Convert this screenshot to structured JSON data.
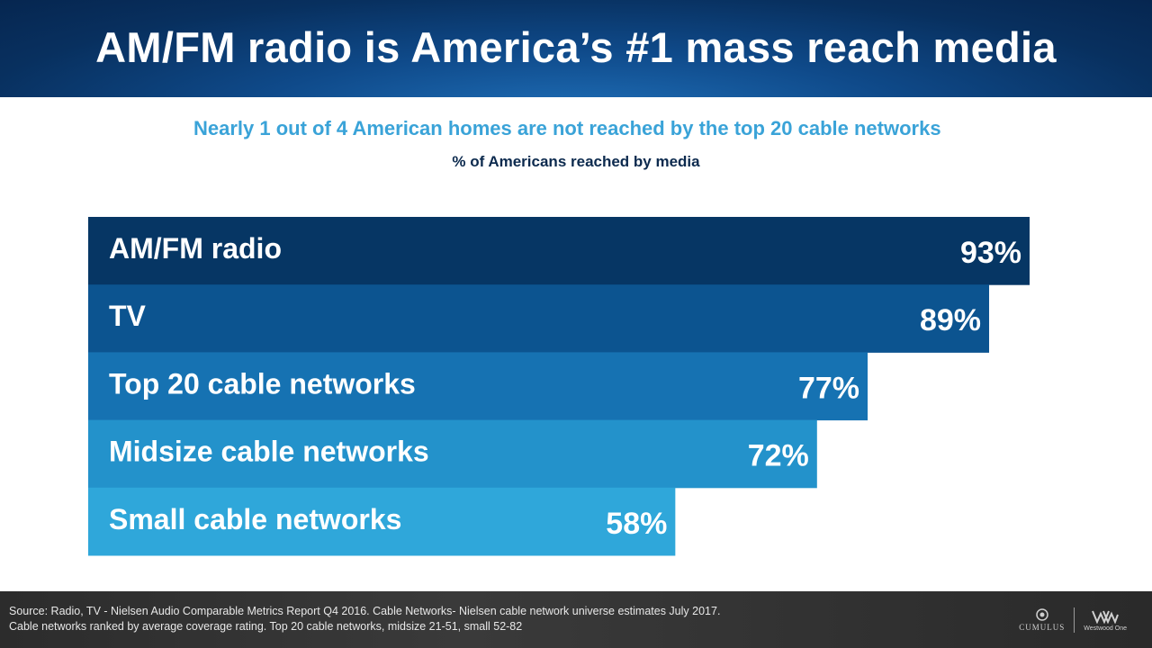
{
  "header": {
    "title": "AM/FM radio is America’s #1 mass reach media"
  },
  "subtitle": "Nearly 1 out of 4 American homes are not reached by the top 20 cable networks",
  "chart_subtitle": "% of Americans reached by media",
  "chart_data": {
    "type": "bar",
    "orientation": "horizontal",
    "title": "% of Americans reached by media",
    "categories": [
      "AM/FM radio",
      "TV",
      "Top 20 cable networks",
      "Midsize cable networks",
      "Small cable networks"
    ],
    "values": [
      93,
      89,
      77,
      72,
      58
    ],
    "value_labels": [
      "93%",
      "89%",
      "77%",
      "72%",
      "58%"
    ],
    "unit": "%",
    "xlim": [
      0,
      93
    ],
    "colors": [
      "#063664",
      "#0c5490",
      "#1672b2",
      "#2392cb",
      "#2fa7da"
    ]
  },
  "footer": {
    "source_line1": "Source: Radio, TV - Nielsen Audio Comparable Metrics Report Q4 2016. Cable Networks- Nielsen cable network universe estimates July 2017.",
    "source_line2": "Cable networks ranked by average coverage rating. Top 20 cable networks, midsize 21-51, small 52-82",
    "logo_left": "CUMULUS",
    "logo_right": "Westwood One"
  }
}
